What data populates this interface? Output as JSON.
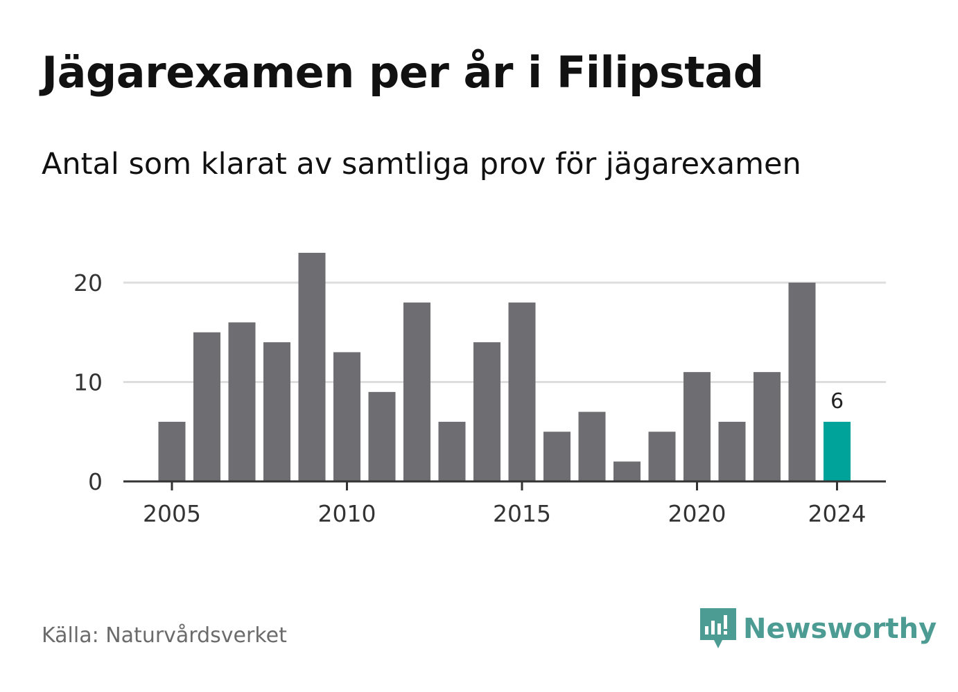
{
  "title": "Jägarexamen per år i Filipstad",
  "subtitle": "Antal som klarat av samtliga prov för jägarexamen",
  "source": "Källa: Naturvårdsverket",
  "brand": {
    "name": "Newsworthy",
    "color": "#4d9c94",
    "icon": "newsworthy-logo-icon"
  },
  "colors": {
    "bar": "#6e6d72",
    "highlight": "#00a39a",
    "grid": "#dddddd",
    "axis": "#333333"
  },
  "chart_data": {
    "type": "bar",
    "categories": [
      2005,
      2006,
      2007,
      2008,
      2009,
      2010,
      2011,
      2012,
      2013,
      2014,
      2015,
      2016,
      2017,
      2018,
      2019,
      2020,
      2021,
      2022,
      2023,
      2024
    ],
    "values": [
      6,
      15,
      16,
      14,
      23,
      13,
      9,
      18,
      6,
      14,
      18,
      5,
      7,
      2,
      5,
      11,
      6,
      11,
      20,
      6
    ],
    "x_ticks": [
      "2005",
      "2010",
      "2015",
      "2020",
      "2024"
    ],
    "y_ticks": [
      "0",
      "10",
      "20"
    ],
    "ylim": [
      0,
      23
    ],
    "grid": true,
    "highlight": {
      "category": 2024,
      "label": "6"
    },
    "xlabel": "",
    "ylabel": ""
  }
}
